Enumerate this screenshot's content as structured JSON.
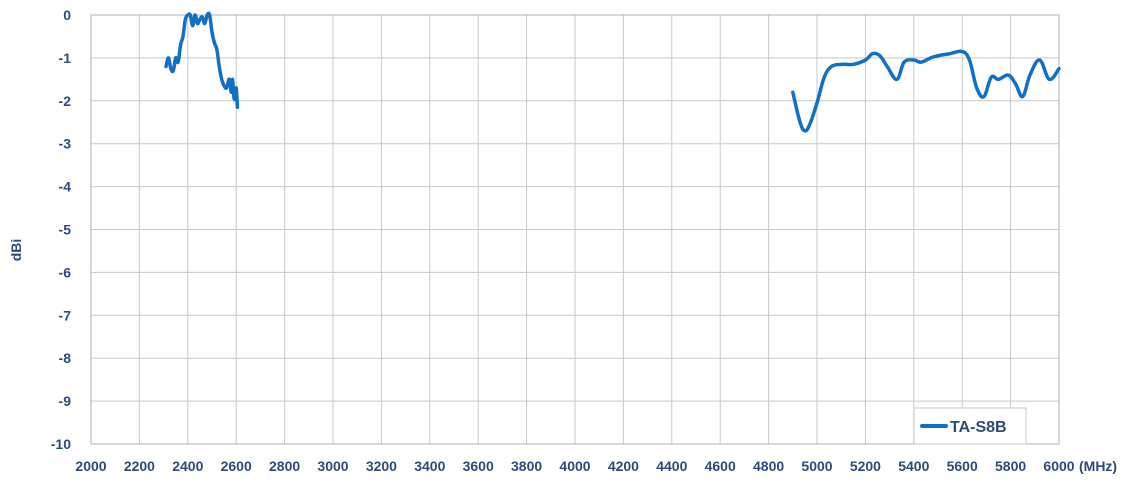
{
  "chart_data": {
    "type": "line",
    "title": "",
    "xlabel": "",
    "x_unit": "(MHz)",
    "ylabel": "dBi",
    "xlim": [
      2000,
      6000
    ],
    "ylim": [
      -10,
      0
    ],
    "x_ticks": [
      2000,
      2200,
      2400,
      2600,
      2800,
      3000,
      3200,
      3400,
      3600,
      3800,
      4000,
      4200,
      4400,
      4600,
      4800,
      5000,
      5200,
      5400,
      5600,
      5800,
      6000
    ],
    "y_ticks": [
      0,
      -1,
      -2,
      -3,
      -4,
      -5,
      -6,
      -7,
      -8,
      -9,
      -10
    ],
    "grid": true,
    "legend_position": "bottom-right",
    "colors": {
      "series": "#1470bf",
      "axis_text": "#2e4a7a",
      "grid": "#c8c8c8"
    },
    "series": [
      {
        "name": "TA-S8B",
        "segments": [
          {
            "x": [
              2310,
              2320,
              2330,
              2340,
              2350,
              2360,
              2370,
              2380,
              2390,
              2400,
              2410,
              2420,
              2430,
              2440,
              2450,
              2460,
              2470,
              2480,
              2490,
              2500,
              2510,
              2520,
              2530,
              2540,
              2550,
              2560,
              2570,
              2575,
              2580,
              2585,
              2590,
              2595,
              2600,
              2605
            ],
            "y": [
              -1.2,
              -1.0,
              -1.25,
              -1.3,
              -1.0,
              -1.1,
              -0.7,
              -0.5,
              -0.1,
              0.0,
              0.0,
              -0.25,
              0.0,
              -0.2,
              -0.1,
              -0.05,
              -0.2,
              0.0,
              0.0,
              -0.4,
              -0.65,
              -0.8,
              -1.2,
              -1.5,
              -1.65,
              -1.7,
              -1.5,
              -1.6,
              -1.8,
              -1.5,
              -1.9,
              -1.95,
              -1.7,
              -2.15
            ]
          },
          {
            "x": [
              4900,
              4930,
              4950,
              4970,
              5000,
              5030,
              5060,
              5100,
              5150,
              5200,
              5230,
              5260,
              5290,
              5330,
              5360,
              5400,
              5430,
              5470,
              5500,
              5550,
              5600,
              5630,
              5660,
              5690,
              5720,
              5750,
              5790,
              5820,
              5850,
              5880,
              5920,
              5960,
              6000
            ],
            "y": [
              -1.8,
              -2.5,
              -2.7,
              -2.55,
              -2.05,
              -1.45,
              -1.2,
              -1.15,
              -1.15,
              -1.05,
              -0.9,
              -0.95,
              -1.2,
              -1.5,
              -1.1,
              -1.05,
              -1.1,
              -1.0,
              -0.95,
              -0.9,
              -0.85,
              -1.05,
              -1.7,
              -1.9,
              -1.45,
              -1.5,
              -1.4,
              -1.6,
              -1.9,
              -1.4,
              -1.05,
              -1.5,
              -1.25
            ]
          }
        ]
      }
    ]
  }
}
